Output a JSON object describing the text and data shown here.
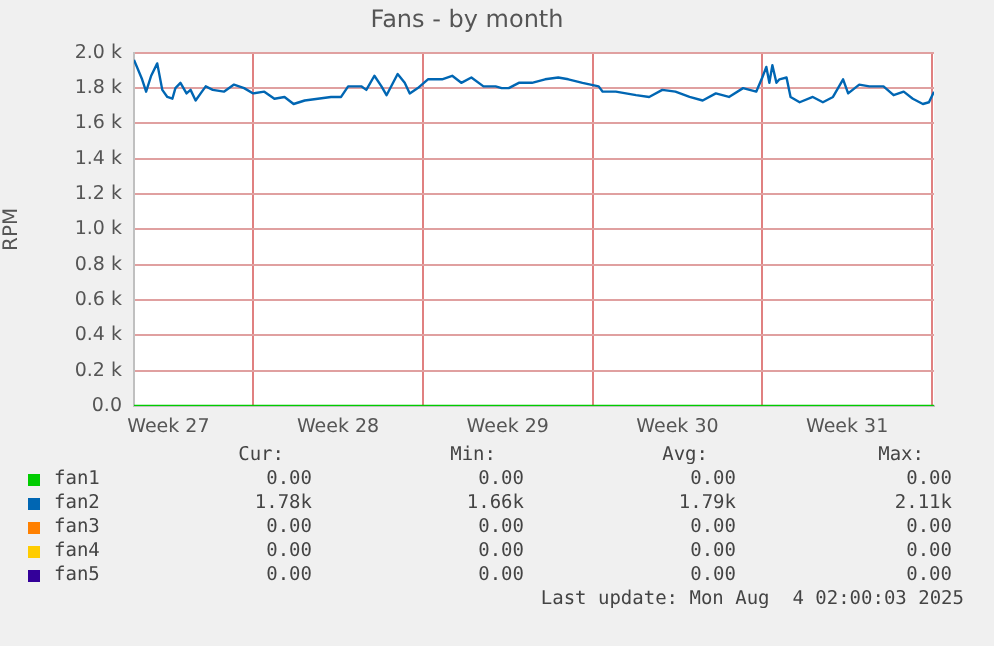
{
  "chart_data": {
    "type": "line",
    "title": "Fans - by month",
    "ylabel": "RPM",
    "xlim": [
      "2025-07-02T02:00",
      "2025-08-04T02:00"
    ],
    "xticks": [
      {
        "value": "2025-07-03T12:00",
        "label": "Week 27"
      },
      {
        "value": "2025-07-07T00:00",
        "label": null
      },
      {
        "value": "2025-07-10T12:00",
        "label": "Week 28"
      },
      {
        "value": "2025-07-14T00:00",
        "label": null
      },
      {
        "value": "2025-07-17T12:00",
        "label": "Week 29"
      },
      {
        "value": "2025-07-21T00:00",
        "label": null
      },
      {
        "value": "2025-07-24T12:00",
        "label": "Week 30"
      },
      {
        "value": "2025-07-28T00:00",
        "label": null
      },
      {
        "value": "2025-07-31T12:00",
        "label": "Week 31"
      },
      {
        "value": "2025-08-04T00:00",
        "label": null
      }
    ],
    "ylim": [
      0,
      2000
    ],
    "yticks": [
      {
        "value": 0,
        "label": "0.0"
      },
      {
        "value": 200,
        "label": "0.2 k"
      },
      {
        "value": 400,
        "label": "0.4 k"
      },
      {
        "value": 600,
        "label": "0.6 k"
      },
      {
        "value": 800,
        "label": "0.8 k"
      },
      {
        "value": 1000,
        "label": "1.0 k"
      },
      {
        "value": 1200,
        "label": "1.2 k"
      },
      {
        "value": 1400,
        "label": "1.4 k"
      },
      {
        "value": 1600,
        "label": "1.6 k"
      },
      {
        "value": 1800,
        "label": "1.8 k"
      },
      {
        "value": 2000,
        "label": "2.0 k"
      }
    ],
    "grid": true,
    "legend": "bottom",
    "marker": "none",
    "line_style": "solid",
    "series": [
      {
        "name": "fan1",
        "color": "#00cc00",
        "x": [
          "2025-07-02T02:00",
          "2025-08-04T02:00"
        ],
        "values": [
          0,
          0
        ]
      },
      {
        "name": "fan2",
        "color": "#0066b3",
        "x": [
          "2025-07-02T02:00",
          "2025-07-02T10:00",
          "2025-07-02T14:00",
          "2025-07-02T19:00",
          "2025-07-03T01:00",
          "2025-07-03T06:00",
          "2025-07-03T11:00",
          "2025-07-03T16:00",
          "2025-07-03T19:00",
          "2025-07-04T00:00",
          "2025-07-04T06:00",
          "2025-07-04T10:00",
          "2025-07-04T15:00",
          "2025-07-04T20:00",
          "2025-07-05T01:00",
          "2025-07-05T08:00",
          "2025-07-05T19:00",
          "2025-07-06T05:00",
          "2025-07-06T15:00",
          "2025-07-07T00:00",
          "2025-07-07T11:00",
          "2025-07-07T21:00",
          "2025-07-08T07:00",
          "2025-07-08T16:00",
          "2025-07-09T03:00",
          "2025-07-09T16:00",
          "2025-07-10T05:00",
          "2025-07-10T15:00",
          "2025-07-10T22:00",
          "2025-07-11T11:00",
          "2025-07-11T16:00",
          "2025-07-12T00:00",
          "2025-07-12T07:00",
          "2025-07-12T12:00",
          "2025-07-12T23:00",
          "2025-07-13T06:00",
          "2025-07-13T11:00",
          "2025-07-13T19:00",
          "2025-07-14T05:00",
          "2025-07-14T19:00",
          "2025-07-15T05:00",
          "2025-07-15T14:00",
          "2025-07-16T00:00",
          "2025-07-16T12:00",
          "2025-07-17T00:00",
          "2025-07-17T06:00",
          "2025-07-17T13:00",
          "2025-07-17T23:00",
          "2025-07-18T12:00",
          "2025-07-19T01:00",
          "2025-07-19T14:00",
          "2025-07-20T00:00",
          "2025-07-20T14:00",
          "2025-07-21T06:00",
          "2025-07-21T10:00",
          "2025-07-21T23:00",
          "2025-07-22T19:00",
          "2025-07-23T08:00",
          "2025-07-23T21:00",
          "2025-07-24T10:00",
          "2025-07-25T00:00",
          "2025-07-25T13:00",
          "2025-07-26T02:00",
          "2025-07-26T15:00",
          "2025-07-27T05:00",
          "2025-07-27T18:00",
          "2025-07-28T00:00",
          "2025-07-28T04:00",
          "2025-07-28T07:00",
          "2025-07-28T10:00",
          "2025-07-28T14:00",
          "2025-07-28T17:00",
          "2025-07-29T00:00",
          "2025-07-29T04:00",
          "2025-07-29T13:00",
          "2025-07-30T02:00",
          "2025-07-30T12:00",
          "2025-07-30T22:00",
          "2025-07-31T08:00",
          "2025-07-31T13:00",
          "2025-08-01T00:00",
          "2025-08-01T10:00",
          "2025-08-02T00:00",
          "2025-08-02T10:00",
          "2025-08-02T20:00",
          "2025-08-03T05:00",
          "2025-08-03T15:00",
          "2025-08-03T21:00",
          "2025-08-04T02:00"
        ],
        "values": [
          1960,
          1850,
          1780,
          1870,
          1940,
          1790,
          1750,
          1740,
          1800,
          1830,
          1770,
          1790,
          1730,
          1770,
          1810,
          1790,
          1780,
          1820,
          1800,
          1770,
          1780,
          1740,
          1750,
          1710,
          1730,
          1740,
          1750,
          1750,
          1810,
          1810,
          1790,
          1870,
          1810,
          1760,
          1880,
          1830,
          1770,
          1800,
          1850,
          1850,
          1870,
          1830,
          1860,
          1810,
          1810,
          1800,
          1800,
          1830,
          1830,
          1850,
          1860,
          1850,
          1830,
          1810,
          1780,
          1780,
          1760,
          1750,
          1790,
          1780,
          1750,
          1730,
          1770,
          1750,
          1800,
          1780,
          1860,
          1920,
          1830,
          1930,
          1830,
          1850,
          1860,
          1750,
          1720,
          1750,
          1720,
          1750,
          1850,
          1770,
          1820,
          1810,
          1810,
          1760,
          1780,
          1740,
          1710,
          1720,
          1780
        ]
      },
      {
        "name": "fan3",
        "color": "#ff8000"
      },
      {
        "name": "fan4",
        "color": "#ffcc00"
      },
      {
        "name": "fan5",
        "color": "#330099"
      }
    ],
    "annotations": [
      "Cur:",
      "Min:",
      "Avg:",
      "Max:",
      "0.00",
      "0.00",
      "0.00",
      "0.00",
      "1.78k",
      "1.66k",
      "1.79k",
      "2.11k",
      "0.00",
      "0.00",
      "0.00",
      "0.00",
      "0.00",
      "0.00",
      "0.00",
      "0.00",
      "0.00",
      "0.00",
      "0.00",
      "0.00",
      "Last update: Mon Aug  4 02:00:03 2025"
    ]
  }
}
